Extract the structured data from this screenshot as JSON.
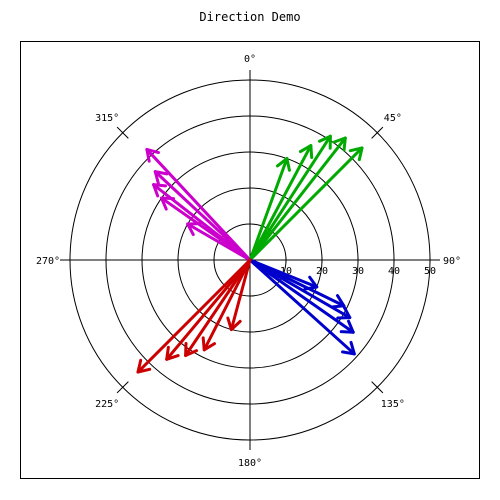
{
  "chart_data": {
    "type": "polar-vector",
    "title": "Direction Demo",
    "direction_labels": [
      "0°",
      "45°",
      "90°",
      "135°",
      "180°",
      "225°",
      "270°",
      "315°"
    ],
    "radial_ticks": [
      "10",
      "20",
      "30",
      "40",
      "50"
    ],
    "rlim": [
      0,
      50
    ],
    "grid": true,
    "angle_zero": "top",
    "angle_direction": "clockwise",
    "series": [
      {
        "color": "#cc00cc",
        "vectors": [
          {
            "angle": 300,
            "magnitude": 20
          },
          {
            "angle": 305,
            "magnitude": 30
          },
          {
            "angle": 308,
            "magnitude": 34
          },
          {
            "angle": 313,
            "magnitude": 36
          },
          {
            "angle": 317,
            "magnitude": 42
          }
        ]
      },
      {
        "color": "#00aa00",
        "vectors": [
          {
            "angle": 20,
            "magnitude": 30
          },
          {
            "angle": 28,
            "magnitude": 36
          },
          {
            "angle": 33,
            "magnitude": 41
          },
          {
            "angle": 38,
            "magnitude": 43
          },
          {
            "angle": 45,
            "magnitude": 44
          }
        ]
      },
      {
        "color": "#0000cc",
        "vectors": [
          {
            "angle": 112,
            "magnitude": 20
          },
          {
            "angle": 116,
            "magnitude": 29
          },
          {
            "angle": 120,
            "magnitude": 32
          },
          {
            "angle": 125,
            "magnitude": 35
          },
          {
            "angle": 132,
            "magnitude": 39
          }
        ]
      },
      {
        "color": "#cc0000",
        "vectors": [
          {
            "angle": 195,
            "magnitude": 20
          },
          {
            "angle": 207,
            "magnitude": 28
          },
          {
            "angle": 214,
            "magnitude": 32
          },
          {
            "angle": 220,
            "magnitude": 36
          },
          {
            "angle": 225,
            "magnitude": 44
          }
        ]
      }
    ]
  }
}
